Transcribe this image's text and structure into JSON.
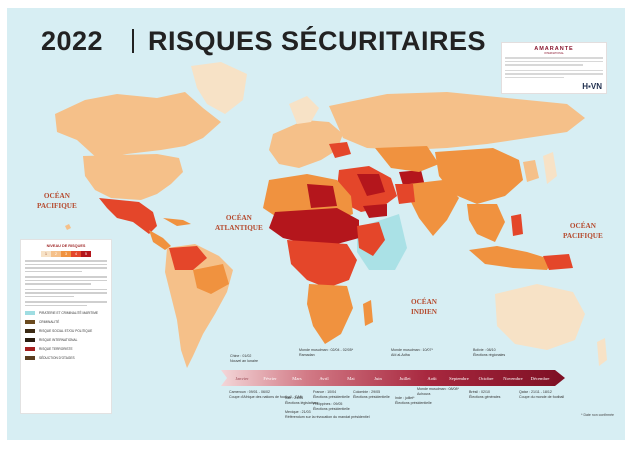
{
  "title": {
    "year": "2022",
    "main": "RISQUES SÉCURITAIRES"
  },
  "oceans": {
    "pacific_west": "OCÉAN\nPACIFIQUE",
    "atlantic": "OCÉAN\nATLANTIQUE",
    "indian": "OCÉAN\nINDIEN",
    "pacific_east": "OCÉAN\nPACIFIQUE"
  },
  "sponsor": {
    "brand": "AMARANTE",
    "tagline": "INTERNATIONAL",
    "partner": "H▪VN"
  },
  "legend": {
    "title": "NIVEAU DE RISQUES",
    "levels": [
      "1",
      "2",
      "3",
      "4",
      "5"
    ],
    "level_colors": [
      "#f7e2c6",
      "#f5c089",
      "#f0923f",
      "#e4462a",
      "#b4161c"
    ],
    "symbols": [
      {
        "label": "PIRATERIE ET CRIMINALITÉ MARITIME",
        "color": "#9fdde2"
      },
      {
        "label": "CRIMINALITÉ",
        "color": "#6b4a1e"
      },
      {
        "label": "RISQUE SOCIAL ET/OU POLITIQUE",
        "color": "#3c2a14"
      },
      {
        "label": "RISQUE INTERNATIONAL",
        "color": "#2b1d10"
      },
      {
        "label": "RISQUE TERRORISTE",
        "color": "#a51d1d"
      },
      {
        "label": "SÉDUCTION D'OTAGES",
        "color": "#5a3d1f"
      }
    ]
  },
  "timeline": {
    "months": [
      "Janvier",
      "Février",
      "Mars",
      "Avril",
      "Mai",
      "Juin",
      "Juillet",
      "Août",
      "Septembre",
      "Octobre",
      "Novembre",
      "Décembre"
    ],
    "events_top": [
      {
        "date": "Chine : 01/02",
        "text": "Nouvel an lunaire"
      },
      {
        "date": "Monde musulman : 02/04 - 02/05*",
        "text": "Ramadan"
      },
      {
        "date": "Monde musulman : 10/07*",
        "text": "Aïd al-Adha"
      },
      {
        "date": "Bolivie : 08/10",
        "text": "Élections régionales"
      }
    ],
    "events_bottom": [
      {
        "date": "Cameroun : 09/01 - 06/02",
        "text": "Coupe d'Afrique des nations de football - CAN"
      },
      {
        "date": "Iran : 21/03",
        "text": "Élections législatives"
      },
      {
        "date": "France : 10/04",
        "text": "Élections présidentielle"
      },
      {
        "date": "Colombie : 29/05",
        "text": "Élections présidentielle"
      },
      {
        "date": "Philippines : 09/05",
        "text": "Élections présidentielle"
      },
      {
        "date": "Mexique : 21/03",
        "text": "Référendum sur la révocation du mandat présidentiel"
      },
      {
        "date": "Inde : juillet*",
        "text": "Élections présidentielle"
      },
      {
        "date": "Monde musulman : 08/08*",
        "text": "Achoura"
      },
      {
        "date": "Brésil : 02/10",
        "text": "Élections générales"
      },
      {
        "date": "Qatar : 21/11 - 18/12",
        "text": "Coupe du monde de football"
      }
    ],
    "footnote": "* Date non confirmée"
  }
}
